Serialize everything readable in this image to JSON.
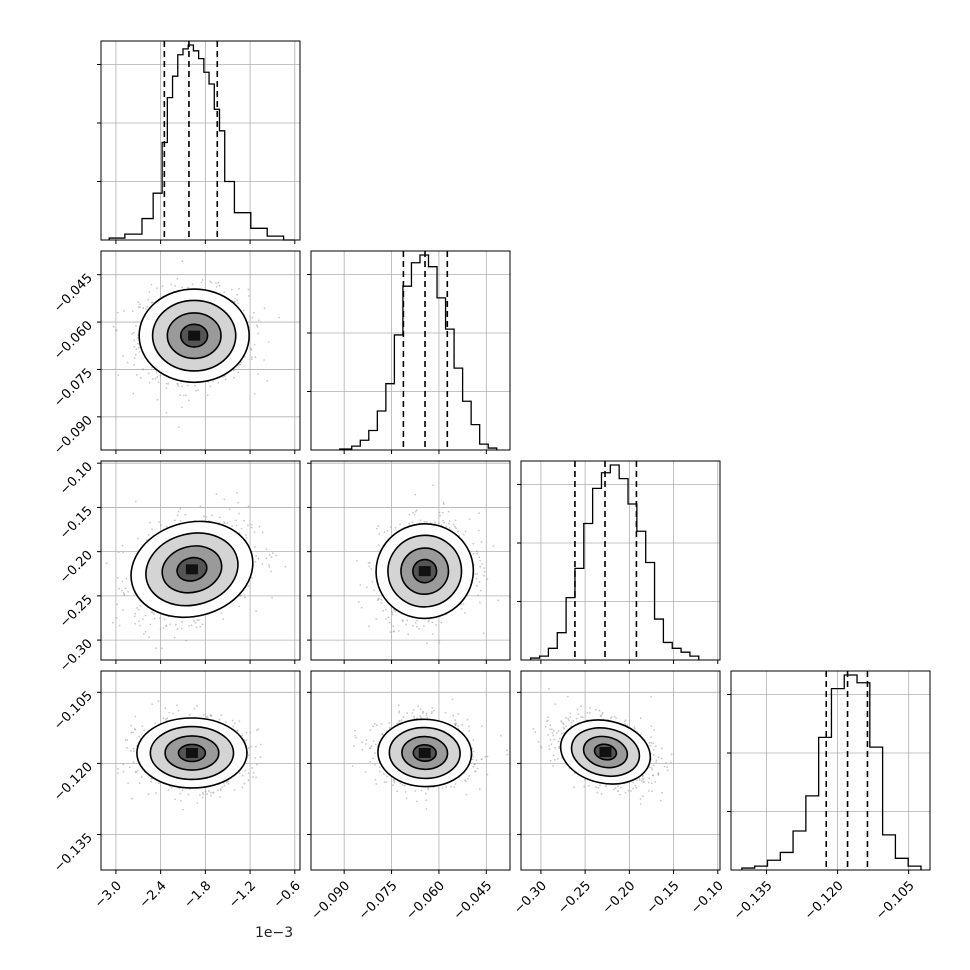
{
  "chart_data": {
    "type": "corner",
    "grid": true,
    "offset_text": "1e−3",
    "quantile_lines": true,
    "parameters": [
      {
        "ticks": [
          -3.0,
          -2.4,
          -1.8,
          -1.2,
          -0.6
        ],
        "tick_labels": [
          "−3.0",
          "−2.4",
          "−1.8",
          "−1.2",
          "−0.6"
        ],
        "range": [
          -3.2,
          -0.53
        ],
        "quantiles": [
          -2.35,
          -2.02,
          -1.64
        ],
        "hist_bins": [
          -3.09,
          -2.88,
          -2.65,
          -2.5,
          -2.38,
          -2.31,
          -2.24,
          -2.17,
          -2.1,
          -2.03,
          -1.96,
          -1.89,
          -1.82,
          -1.75,
          -1.68,
          -1.61,
          -1.54,
          -1.41,
          -1.19,
          -0.97,
          -0.75,
          -0.61
        ],
        "hist_counts": [
          0.01,
          0.03,
          0.11,
          0.24,
          0.5,
          0.73,
          0.84,
          0.95,
          0.98,
          1.0,
          0.97,
          0.93,
          0.86,
          0.8,
          0.67,
          0.56,
          0.3,
          0.14,
          0.06,
          0.02,
          0.0
        ]
      },
      {
        "ticks": [
          -0.09,
          -0.075,
          -0.06,
          -0.045
        ],
        "tick_labels": [
          "−0.090",
          "−0.075",
          "−0.060",
          "−0.045"
        ],
        "range": [
          -0.1005,
          -0.0375
        ],
        "quantiles": [
          -0.07125,
          -0.0644,
          -0.05735
        ],
        "hist_bins": [
          -0.0914,
          -0.0876,
          -0.0849,
          -0.0822,
          -0.0795,
          -0.0768,
          -0.0741,
          -0.0714,
          -0.0687,
          -0.066,
          -0.0633,
          -0.0606,
          -0.0579,
          -0.0552,
          -0.0525,
          -0.0498,
          -0.0471,
          -0.0444,
          -0.0417
        ],
        "hist_counts": [
          0.005,
          0.02,
          0.05,
          0.1,
          0.2,
          0.34,
          0.59,
          0.84,
          0.96,
          1.0,
          0.94,
          0.78,
          0.62,
          0.42,
          0.25,
          0.13,
          0.03,
          0.01
        ]
      },
      {
        "ticks": [
          -0.3,
          -0.25,
          -0.2,
          -0.15,
          -0.1
        ],
        "tick_labels": [
          "−0.30",
          "−0.25",
          "−0.20",
          "−0.15",
          "−0.10"
        ],
        "range": [
          -0.3225,
          -0.0975
        ],
        "quantiles": [
          -0.2615,
          -0.2275,
          -0.192
        ],
        "hist_bins": [
          -0.3115,
          -0.3015,
          -0.2915,
          -0.2815,
          -0.2715,
          -0.2615,
          -0.2515,
          -0.2415,
          -0.2315,
          -0.2215,
          -0.2115,
          -0.2015,
          -0.1915,
          -0.1815,
          -0.1715,
          -0.1615,
          -0.1515,
          -0.1415,
          -0.1315,
          -0.1215
        ],
        "hist_counts": [
          0.01,
          0.02,
          0.06,
          0.14,
          0.32,
          0.47,
          0.7,
          0.88,
          0.96,
          1.0,
          0.93,
          0.8,
          0.66,
          0.5,
          0.21,
          0.09,
          0.06,
          0.04,
          0.02
        ]
      },
      {
        "ticks": [
          -0.135,
          -0.12,
          -0.105
        ],
        "tick_labels": [
          "−0.135",
          "−0.120",
          "−0.105"
        ],
        "range": [
          -0.1425,
          -0.1005
        ],
        "quantiles": [
          -0.1224,
          -0.1179,
          -0.1137
        ],
        "hist_bins": [
          -0.1402,
          -0.1375,
          -0.1348,
          -0.1321,
          -0.1294,
          -0.1267,
          -0.124,
          -0.1213,
          -0.1186,
          -0.1159,
          -0.1132,
          -0.1105,
          -0.1078,
          -0.1051,
          -0.1024
        ],
        "hist_counts": [
          0.01,
          0.02,
          0.05,
          0.09,
          0.2,
          0.38,
          0.68,
          0.93,
          1.0,
          0.96,
          0.63,
          0.18,
          0.06,
          0.02
        ]
      }
    ],
    "pairs": [
      {
        "row": 1,
        "col": 0,
        "center": [
          -1.95,
          -0.0643
        ],
        "sd": [
          0.36,
          0.0072
        ],
        "corr": 0.0
      },
      {
        "row": 2,
        "col": 0,
        "center": [
          -1.98,
          -0.22
        ],
        "sd": [
          0.38,
          0.028
        ],
        "corr": 0.32
      },
      {
        "row": 2,
        "col": 1,
        "center": [
          -0.0645,
          -0.222
        ],
        "sd": [
          0.0073,
          0.027
        ],
        "corr": 0.15
      },
      {
        "row": 3,
        "col": 0,
        "center": [
          -1.98,
          -0.1178
        ],
        "sd": [
          0.36,
          0.0036
        ],
        "corr": 0.0
      },
      {
        "row": 3,
        "col": 1,
        "center": [
          -0.0645,
          -0.1178
        ],
        "sd": [
          0.0073,
          0.0035
        ],
        "corr": -0.05
      },
      {
        "row": 3,
        "col": 2,
        "center": [
          -0.227,
          -0.1176
        ],
        "sd": [
          0.027,
          0.0035
        ],
        "corr": -0.35
      }
    ]
  }
}
